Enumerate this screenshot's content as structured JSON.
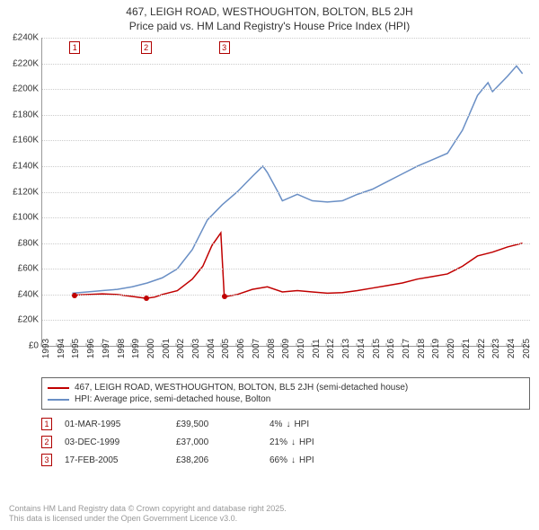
{
  "title": {
    "line1": "467, LEIGH ROAD, WESTHOUGHTON, BOLTON, BL5 2JH",
    "line2": "Price paid vs. HM Land Registry's House Price Index (HPI)"
  },
  "chart": {
    "type": "line",
    "background_color": "#ffffff",
    "grid_color": "#cccccc",
    "axis_color": "#999999",
    "label_fontsize": 10,
    "x_axis": {
      "ticks": [
        1993,
        1994,
        1995,
        1996,
        1997,
        1998,
        1999,
        2000,
        2001,
        2002,
        2003,
        2004,
        2005,
        2006,
        2007,
        2008,
        2009,
        2010,
        2011,
        2012,
        2013,
        2014,
        2015,
        2016,
        2017,
        2018,
        2019,
        2020,
        2021,
        2022,
        2023,
        2024,
        2025
      ],
      "min": 1993,
      "max": 2025.5
    },
    "y_axis": {
      "ticks": [
        0,
        20000,
        40000,
        60000,
        80000,
        100000,
        120000,
        140000,
        160000,
        180000,
        200000,
        220000,
        240000
      ],
      "labels": [
        "£0",
        "£20K",
        "£40K",
        "£60K",
        "£80K",
        "£100K",
        "£120K",
        "£140K",
        "£160K",
        "£180K",
        "£200K",
        "£220K",
        "£240K"
      ],
      "min": 0,
      "max": 240000
    },
    "series": [
      {
        "name": "property",
        "label": "467, LEIGH ROAD, WESTHOUGHTON, BOLTON, BL5 2JH (semi-detached house)",
        "color": "#c00000",
        "line_width": 1.5,
        "points": [
          [
            1995.17,
            39500
          ],
          [
            1996,
            40000
          ],
          [
            1997,
            40500
          ],
          [
            1998,
            40000
          ],
          [
            1999,
            38500
          ],
          [
            1999.92,
            37000
          ],
          [
            2000.5,
            38000
          ],
          [
            2001,
            40000
          ],
          [
            2002,
            43000
          ],
          [
            2003,
            52000
          ],
          [
            2003.7,
            62000
          ],
          [
            2004.3,
            78000
          ],
          [
            2004.9,
            88000
          ],
          [
            2005.13,
            38206
          ],
          [
            2006,
            40000
          ],
          [
            2007,
            44000
          ],
          [
            2008,
            46000
          ],
          [
            2009,
            42000
          ],
          [
            2010,
            43000
          ],
          [
            2011,
            42000
          ],
          [
            2012,
            41000
          ],
          [
            2013,
            41500
          ],
          [
            2014,
            43000
          ],
          [
            2015,
            45000
          ],
          [
            2016,
            47000
          ],
          [
            2017,
            49000
          ],
          [
            2018,
            52000
          ],
          [
            2019,
            54000
          ],
          [
            2020,
            56000
          ],
          [
            2021,
            62000
          ],
          [
            2022,
            70000
          ],
          [
            2023,
            73000
          ],
          [
            2024,
            77000
          ],
          [
            2025,
            80000
          ]
        ],
        "markers": [
          {
            "n": "1",
            "x": 1995.17,
            "y": 39500
          },
          {
            "n": "2",
            "x": 1999.92,
            "y": 37000
          },
          {
            "n": "3",
            "x": 2005.13,
            "y": 38206
          }
        ]
      },
      {
        "name": "hpi",
        "label": "HPI: Average price, semi-detached house, Bolton",
        "color": "#6a8fc5",
        "line_width": 1.5,
        "points": [
          [
            1995,
            41000
          ],
          [
            1996,
            42000
          ],
          [
            1997,
            43000
          ],
          [
            1998,
            44000
          ],
          [
            1999,
            46000
          ],
          [
            2000,
            49000
          ],
          [
            2001,
            53000
          ],
          [
            2002,
            60000
          ],
          [
            2003,
            75000
          ],
          [
            2004,
            98000
          ],
          [
            2005,
            110000
          ],
          [
            2006,
            120000
          ],
          [
            2007,
            132000
          ],
          [
            2007.7,
            140000
          ],
          [
            2008,
            135000
          ],
          [
            2008.7,
            120000
          ],
          [
            2009,
            113000
          ],
          [
            2010,
            118000
          ],
          [
            2011,
            113000
          ],
          [
            2012,
            112000
          ],
          [
            2013,
            113000
          ],
          [
            2014,
            118000
          ],
          [
            2015,
            122000
          ],
          [
            2016,
            128000
          ],
          [
            2017,
            134000
          ],
          [
            2018,
            140000
          ],
          [
            2019,
            145000
          ],
          [
            2020,
            150000
          ],
          [
            2021,
            168000
          ],
          [
            2022,
            195000
          ],
          [
            2022.7,
            205000
          ],
          [
            2023,
            198000
          ],
          [
            2024,
            210000
          ],
          [
            2024.6,
            218000
          ],
          [
            2025,
            212000
          ]
        ]
      }
    ]
  },
  "legend": {
    "rows": [
      {
        "color": "#c00000",
        "label": "467, LEIGH ROAD, WESTHOUGHTON, BOLTON, BL5 2JH (semi-detached house)"
      },
      {
        "color": "#6a8fc5",
        "label": "HPI: Average price, semi-detached house, Bolton"
      }
    ]
  },
  "transactions": [
    {
      "n": "1",
      "date": "01-MAR-1995",
      "price": "£39,500",
      "hpi_pct": "4%",
      "arrow": "↓",
      "hpi_label": "HPI"
    },
    {
      "n": "2",
      "date": "03-DEC-1999",
      "price": "£37,000",
      "hpi_pct": "21%",
      "arrow": "↓",
      "hpi_label": "HPI"
    },
    {
      "n": "3",
      "date": "17-FEB-2005",
      "price": "£38,206",
      "hpi_pct": "66%",
      "arrow": "↓",
      "hpi_label": "HPI"
    }
  ],
  "marker_color": "#b00000",
  "footer": {
    "line1": "Contains HM Land Registry data © Crown copyright and database right 2025.",
    "line2": "This data is licensed under the Open Government Licence v3.0."
  }
}
